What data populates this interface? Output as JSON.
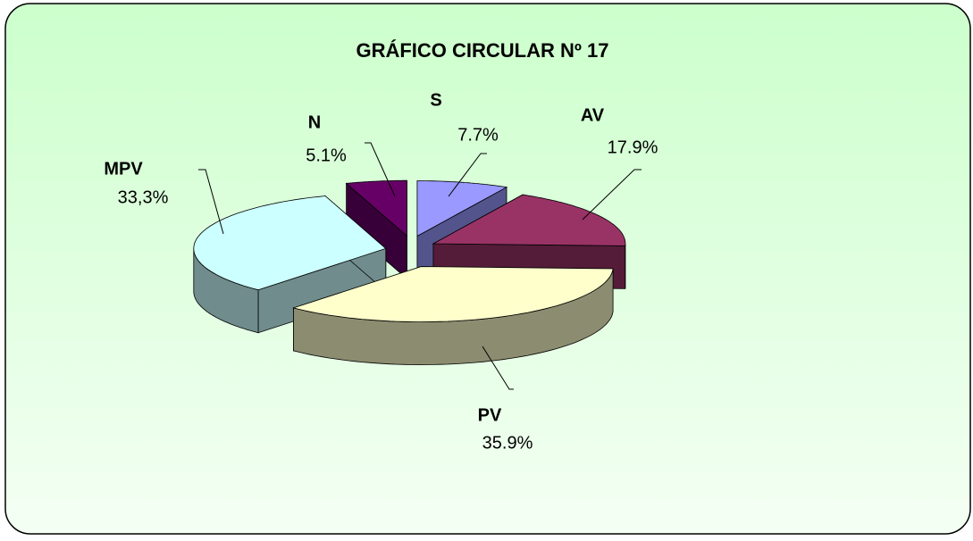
{
  "chart_data": {
    "type": "pie",
    "title": "GRÁFICO CIRCULAR Nº 17",
    "categories": [
      "S",
      "AV",
      "PV",
      "MPV",
      "N"
    ],
    "values": [
      7.7,
      17.9,
      35.9,
      33.3,
      5.1
    ],
    "value_labels": [
      "7.7%",
      "17.9%",
      "35.9%",
      "33,3%",
      "5.1%"
    ],
    "colors": [
      "#9999ff",
      "#993366",
      "#ffffcc",
      "#ccffff",
      "#660066"
    ]
  }
}
